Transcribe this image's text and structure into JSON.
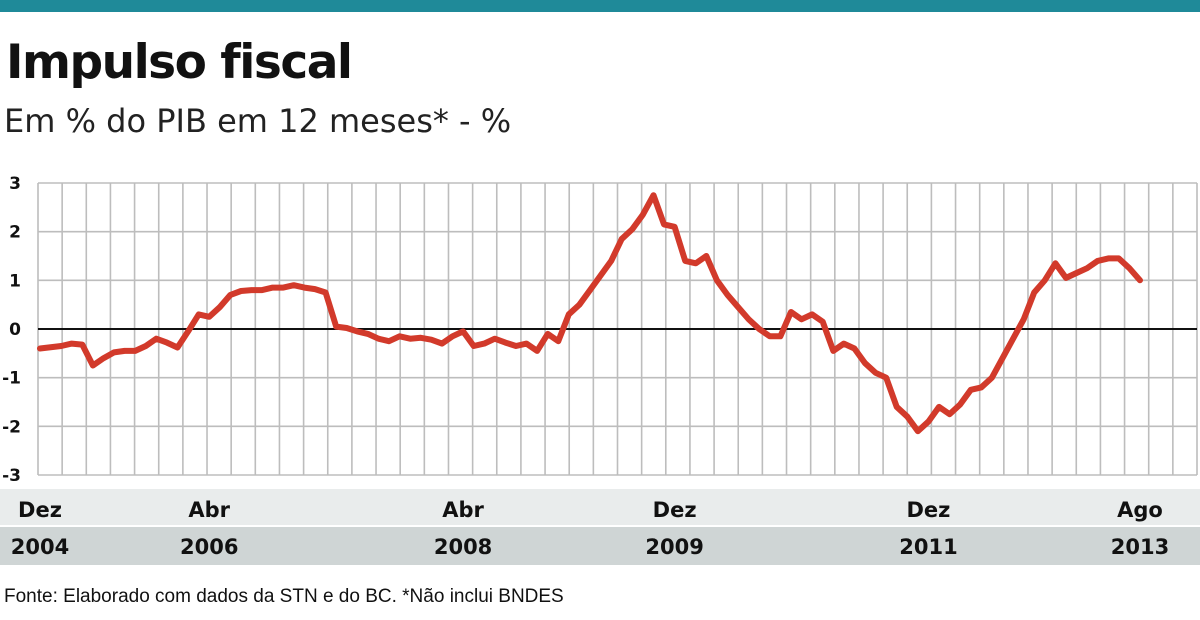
{
  "header": {
    "title": "Impulso fiscal",
    "subtitle": "Em % do PIB em 12 meses* - %"
  },
  "source": "Fonte: Elaborado com  dados da STN e do BC. *Não inclui BNDES",
  "colors": {
    "top_bar": "#1f8a99",
    "line": "#d23a2b",
    "grid": "#bdbdbd",
    "zero_line": "#111111",
    "month_band": "#e9ecec",
    "year_band": "#cfd5d5"
  },
  "chart_data": {
    "type": "line",
    "title": "Impulso fiscal",
    "subtitle": "Em % do PIB em 12 meses* - %",
    "x_start": "2004-12",
    "x_end": "2013-08",
    "ylim": [
      -3,
      3
    ],
    "y_ticks": [
      "3",
      "2",
      "1",
      "0",
      "-1",
      "-2",
      "-3"
    ],
    "grid": true,
    "x_axis_labels": [
      {
        "date": "2004-12",
        "month": "Dez",
        "year": "2004"
      },
      {
        "date": "2006-04",
        "month": "Abr",
        "year": "2006"
      },
      {
        "date": "2008-04",
        "month": "Abr",
        "year": "2008"
      },
      {
        "date": "2009-12",
        "month": "Dez",
        "year": "2009"
      },
      {
        "date": "2011-12",
        "month": "Dez",
        "year": "2011"
      },
      {
        "date": "2013-08",
        "month": "Ago",
        "year": "2013"
      }
    ],
    "series": [
      {
        "points": [
          [
            "2004-12",
            -0.4
          ],
          [
            "2005-02",
            -0.35
          ],
          [
            "2005-03",
            -0.3
          ],
          [
            "2005-04",
            -0.32
          ],
          [
            "2005-05",
            -0.75
          ],
          [
            "2005-06",
            -0.6
          ],
          [
            "2005-07",
            -0.48
          ],
          [
            "2005-08",
            -0.45
          ],
          [
            "2005-09",
            -0.45
          ],
          [
            "2005-10",
            -0.35
          ],
          [
            "2005-11",
            -0.2
          ],
          [
            "2005-12",
            -0.28
          ],
          [
            "2006-01",
            -0.38
          ],
          [
            "2006-02",
            -0.05
          ],
          [
            "2006-03",
            0.3
          ],
          [
            "2006-04",
            0.25
          ],
          [
            "2006-05",
            0.45
          ],
          [
            "2006-06",
            0.7
          ],
          [
            "2006-07",
            0.78
          ],
          [
            "2006-08",
            0.8
          ],
          [
            "2006-09",
            0.8
          ],
          [
            "2006-10",
            0.85
          ],
          [
            "2006-11",
            0.85
          ],
          [
            "2006-12",
            0.9
          ],
          [
            "2007-01",
            0.85
          ],
          [
            "2007-02",
            0.82
          ],
          [
            "2007-03",
            0.75
          ],
          [
            "2007-04",
            0.05
          ],
          [
            "2007-05",
            0.02
          ],
          [
            "2007-06",
            -0.05
          ],
          [
            "2007-07",
            -0.1
          ],
          [
            "2007-08",
            -0.2
          ],
          [
            "2007-09",
            -0.25
          ],
          [
            "2007-10",
            -0.15
          ],
          [
            "2007-11",
            -0.2
          ],
          [
            "2007-12",
            -0.18
          ],
          [
            "2008-01",
            -0.22
          ],
          [
            "2008-02",
            -0.3
          ],
          [
            "2008-03",
            -0.15
          ],
          [
            "2008-04",
            -0.05
          ],
          [
            "2008-05",
            -0.35
          ],
          [
            "2008-06",
            -0.3
          ],
          [
            "2008-07",
            -0.2
          ],
          [
            "2008-08",
            -0.28
          ],
          [
            "2008-09",
            -0.35
          ],
          [
            "2008-10",
            -0.3
          ],
          [
            "2008-11",
            -0.45
          ],
          [
            "2008-12",
            -0.1
          ],
          [
            "2009-01",
            -0.25
          ],
          [
            "2009-02",
            0.3
          ],
          [
            "2009-03",
            0.5
          ],
          [
            "2009-04",
            0.8
          ],
          [
            "2009-05",
            1.1
          ],
          [
            "2009-06",
            1.4
          ],
          [
            "2009-07",
            1.85
          ],
          [
            "2009-08",
            2.05
          ],
          [
            "2009-09",
            2.35
          ],
          [
            "2009-10",
            2.75
          ],
          [
            "2009-11",
            2.15
          ],
          [
            "2009-12",
            2.1
          ],
          [
            "2010-01",
            1.4
          ],
          [
            "2010-02",
            1.35
          ],
          [
            "2010-03",
            1.5
          ],
          [
            "2010-04",
            1.0
          ],
          [
            "2010-05",
            0.7
          ],
          [
            "2010-06",
            0.45
          ],
          [
            "2010-07",
            0.2
          ],
          [
            "2010-08",
            0.0
          ],
          [
            "2010-09",
            -0.15
          ],
          [
            "2010-10",
            -0.15
          ],
          [
            "2010-11",
            0.35
          ],
          [
            "2010-12",
            0.2
          ],
          [
            "2011-01",
            0.3
          ],
          [
            "2011-02",
            0.15
          ],
          [
            "2011-03",
            -0.45
          ],
          [
            "2011-04",
            -0.3
          ],
          [
            "2011-05",
            -0.4
          ],
          [
            "2011-06",
            -0.7
          ],
          [
            "2011-07",
            -0.9
          ],
          [
            "2011-08",
            -1.0
          ],
          [
            "2011-09",
            -1.6
          ],
          [
            "2011-10",
            -1.8
          ],
          [
            "2011-11",
            -2.1
          ],
          [
            "2011-12",
            -1.9
          ],
          [
            "2012-01",
            -1.6
          ],
          [
            "2012-02",
            -1.75
          ],
          [
            "2012-03",
            -1.55
          ],
          [
            "2012-04",
            -1.25
          ],
          [
            "2012-05",
            -1.2
          ],
          [
            "2012-06",
            -1.0
          ],
          [
            "2012-07",
            -0.6
          ],
          [
            "2012-08",
            -0.2
          ],
          [
            "2012-09",
            0.2
          ],
          [
            "2012-10",
            0.75
          ],
          [
            "2012-11",
            1.0
          ],
          [
            "2012-12",
            1.35
          ],
          [
            "2013-01",
            1.05
          ],
          [
            "2013-02",
            1.15
          ],
          [
            "2013-03",
            1.25
          ],
          [
            "2013-04",
            1.4
          ],
          [
            "2013-05",
            1.45
          ],
          [
            "2013-06",
            1.45
          ],
          [
            "2013-07",
            1.25
          ],
          [
            "2013-08",
            1.0
          ]
        ]
      }
    ]
  }
}
